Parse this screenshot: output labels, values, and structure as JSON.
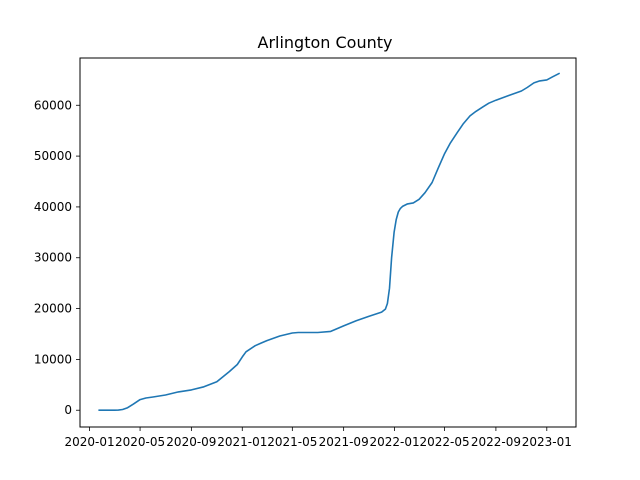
{
  "chart_data": {
    "type": "line",
    "title": "Arlington County",
    "xlabel": "",
    "ylabel": "",
    "grid": false,
    "legend": "none",
    "line_color": "#1f77b4",
    "xlim": [
      "2019-12-09",
      "2023-03-12"
    ],
    "ylim": [
      -3300,
      69300
    ],
    "x_ticks": [
      "2020-01",
      "2020-05",
      "2020-09",
      "2021-01",
      "2021-05",
      "2021-09",
      "2022-01",
      "2022-05",
      "2022-09",
      "2023-01"
    ],
    "y_ticks": [
      0,
      10000,
      20000,
      30000,
      40000,
      50000,
      60000
    ],
    "series": [
      {
        "x": [
          "2020-01-22",
          "2020-03-01",
          "2020-03-10",
          "2020-03-20",
          "2020-04-01",
          "2020-04-15",
          "2020-05-01",
          "2020-05-15",
          "2020-06-01",
          "2020-07-01",
          "2020-08-01",
          "2020-09-01",
          "2020-10-01",
          "2020-11-01",
          "2020-12-01",
          "2020-12-20",
          "2021-01-01",
          "2021-01-10",
          "2021-02-01",
          "2021-02-15",
          "2021-03-01",
          "2021-04-01",
          "2021-05-01",
          "2021-05-15",
          "2021-06-01",
          "2021-07-01",
          "2021-08-01",
          "2021-08-15",
          "2021-09-01",
          "2021-10-01",
          "2021-11-01",
          "2021-12-01",
          "2021-12-10",
          "2021-12-15",
          "2021-12-20",
          "2021-12-25",
          "2021-12-31",
          "2022-01-05",
          "2022-01-10",
          "2022-01-15",
          "2022-01-20",
          "2022-02-01",
          "2022-02-15",
          "2022-03-01",
          "2022-03-15",
          "2022-04-01",
          "2022-04-15",
          "2022-05-01",
          "2022-05-15",
          "2022-06-01",
          "2022-06-15",
          "2022-07-01",
          "2022-07-15",
          "2022-08-01",
          "2022-08-15",
          "2022-09-01",
          "2022-10-01",
          "2022-11-01",
          "2022-11-15",
          "2022-12-01",
          "2022-12-15",
          "2023-01-01",
          "2023-01-15",
          "2023-02-01"
        ],
        "values": [
          0,
          0,
          30,
          150,
          500,
          1200,
          2100,
          2400,
          2600,
          3000,
          3600,
          4000,
          4600,
          5600,
          7600,
          9000,
          10500,
          11500,
          12700,
          13200,
          13700,
          14600,
          15200,
          15300,
          15300,
          15300,
          15500,
          16000,
          16600,
          17600,
          18500,
          19300,
          19900,
          21000,
          24000,
          30000,
          35000,
          37500,
          39000,
          39700,
          40100,
          40600,
          40800,
          41500,
          42800,
          44800,
          47500,
          50500,
          52600,
          54700,
          56400,
          57900,
          58800,
          59700,
          60400,
          61000,
          61900,
          62800,
          63500,
          64400,
          64800,
          65000,
          65600,
          66300
        ]
      }
    ]
  }
}
